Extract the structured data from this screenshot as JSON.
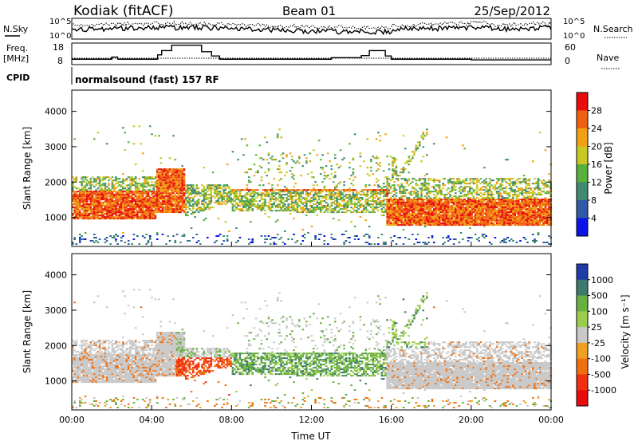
{
  "header": {
    "station": "Kodiak (fitACF)",
    "beam": "Beam 01",
    "date": "25/Sep/2012"
  },
  "noise_panel": {
    "left_label": "N.Sky",
    "right_label": "N.Search",
    "left_ticks": [
      "10^5",
      "10^0"
    ],
    "right_ticks": [
      "10^5",
      "10^0"
    ]
  },
  "freq_panel": {
    "left_label_1": "Freq.",
    "left_label_2": "[MHz]",
    "left_ticks": [
      "18",
      "8"
    ],
    "right_label": "Nave",
    "right_ticks": [
      "60",
      "0"
    ]
  },
  "cpid_panel": {
    "label": "CPID",
    "text": "normalsound (fast) 157 RF"
  },
  "chart_data": [
    {
      "type": "heatmap",
      "name": "power",
      "ylabel": "Slant Range [km]",
      "ylim": [
        180,
        4600
      ],
      "yticks": [
        "1000",
        "2000",
        "3000",
        "4000"
      ],
      "colorbar_label": "Power [dB]",
      "colorbar_ticks": [
        "4",
        "8",
        "12",
        "16",
        "20",
        "24",
        "28"
      ],
      "colorbar_colors": [
        "#0a14e8",
        "#2e5aa8",
        "#3e8a72",
        "#58b03c",
        "#c8c820",
        "#f0a010",
        "#f06010",
        "#e80c0c"
      ]
    },
    {
      "type": "heatmap",
      "name": "velocity",
      "ylabel": "Slant Range [km]",
      "xlabel": "Time UT",
      "ylim": [
        180,
        4600
      ],
      "xlim": [
        0,
        24
      ],
      "yticks": [
        "1000",
        "2000",
        "3000",
        "4000"
      ],
      "xticks": [
        "00:00",
        "04:00",
        "08:00",
        "12:00",
        "16:00",
        "20:00",
        "00:00"
      ],
      "colorbar_label": "Velocity [m s⁻¹]",
      "colorbar_ticks": [
        "1000",
        "500",
        "100",
        "25",
        "-25",
        "-100",
        "-500",
        "-1000"
      ],
      "colorbar_colors": [
        "#1e3ca8",
        "#3c7a6e",
        "#68b040",
        "#9ccc4c",
        "#c8c8c8",
        "#f0a020",
        "#f07010",
        "#f03010",
        "#e80c0c"
      ]
    }
  ]
}
